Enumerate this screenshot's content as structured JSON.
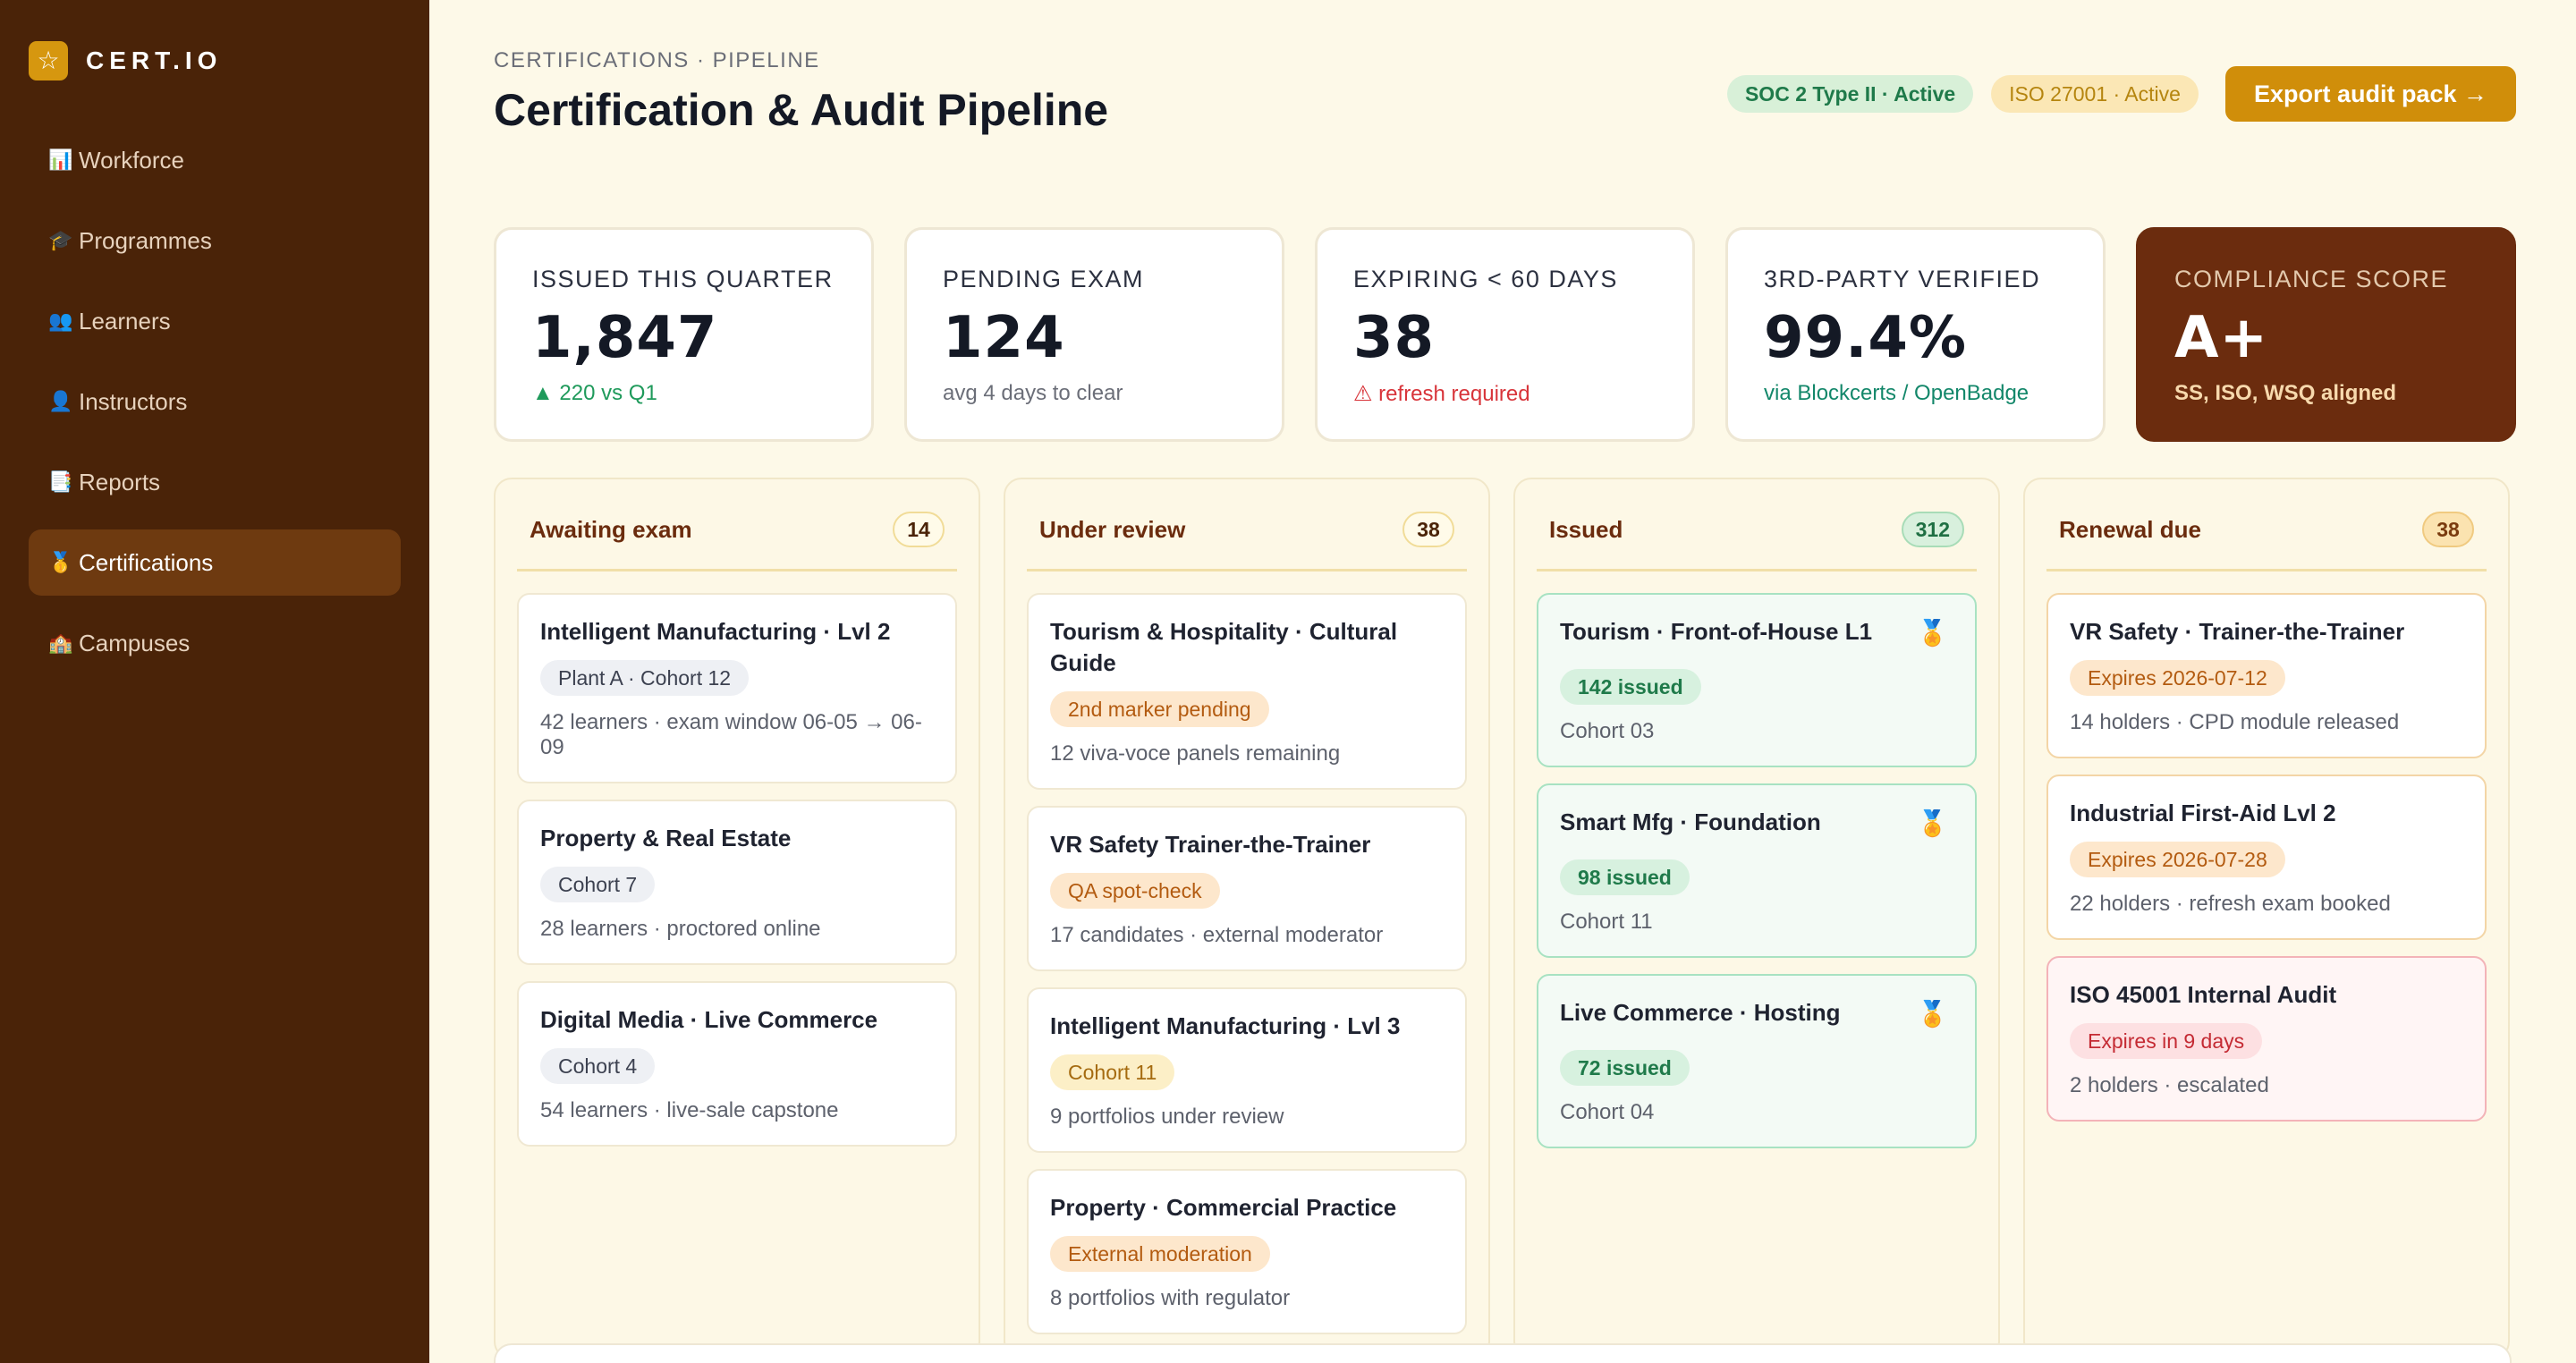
{
  "brand": {
    "logo_icon": "☆",
    "name": "CERT.IO"
  },
  "sidebar": {
    "items": [
      {
        "icon": "📊",
        "label": "Workforce",
        "active": false
      },
      {
        "icon": "🎓",
        "label": "Programmes",
        "active": false
      },
      {
        "icon": "👥",
        "label": "Learners",
        "active": false
      },
      {
        "icon": "👤",
        "label": "Instructors",
        "active": false
      },
      {
        "icon": "📑",
        "label": "Reports",
        "active": false
      },
      {
        "icon": "🥇",
        "label": "Certifications",
        "active": true
      },
      {
        "icon": "🏫",
        "label": "Campuses",
        "active": false
      }
    ]
  },
  "header": {
    "breadcrumb": "CERTIFICATIONS · PIPELINE",
    "title": "Certification & Audit Pipeline",
    "badges": [
      "SOC 2 Type II · Active",
      "ISO 27001 · Active"
    ],
    "export_label": "Export audit pack →"
  },
  "kpis": [
    {
      "label": "ISSUED THIS QUARTER",
      "value": "1,847",
      "sub": "▲ 220 vs Q1"
    },
    {
      "label": "PENDING EXAM",
      "value": "124",
      "sub": "avg 4 days to clear"
    },
    {
      "label": "EXPIRING < 60 DAYS",
      "value": "38",
      "sub": "⚠ refresh required"
    },
    {
      "label": "3RD-PARTY VERIFIED",
      "value": "99.4%",
      "sub": "via Blockcerts / OpenBadge"
    },
    {
      "label": "COMPLIANCE SCORE",
      "value": "A+",
      "sub": "SS, ISO, WSQ aligned"
    }
  ],
  "columns": [
    {
      "title": "Awaiting exam",
      "count": "14",
      "cards": [
        {
          "title": "Intelligent Manufacturing · Lvl 2",
          "tag": "Plant A · Cohort 12",
          "meta": "42 learners · exam window 06-05 → 06-09"
        },
        {
          "title": "Property & Real Estate",
          "tag": "Cohort 7",
          "meta": "28 learners · proctored online"
        },
        {
          "title": "Digital Media · Live Commerce",
          "tag": "Cohort 4",
          "meta": "54 learners · live-sale capstone"
        }
      ]
    },
    {
      "title": "Under review",
      "count": "38",
      "cards": [
        {
          "title": "Tourism & Hospitality · Cultural Guide",
          "tag": "2nd marker pending",
          "meta": "12 viva-voce panels remaining"
        },
        {
          "title": "VR Safety Trainer-the-Trainer",
          "tag": "QA spot-check",
          "meta": "17 candidates · external moderator"
        },
        {
          "title": "Intelligent Manufacturing · Lvl 3",
          "tag": "Cohort 11",
          "meta": "9 portfolios under review"
        },
        {
          "title": "Property · Commercial Practice",
          "tag": "External moderation",
          "meta": "8 portfolios with regulator"
        }
      ]
    },
    {
      "title": "Issued",
      "count": "312",
      "cards": [
        {
          "title": "Tourism · Front-of-House L1",
          "tag": "142 issued",
          "meta": "Cohort 03",
          "icon": "🏅"
        },
        {
          "title": "Smart Mfg · Foundation",
          "tag": "98 issued",
          "meta": "Cohort 11",
          "icon": "🏅"
        },
        {
          "title": "Live Commerce · Hosting",
          "tag": "72 issued",
          "meta": "Cohort 04",
          "icon": "🏅"
        }
      ]
    },
    {
      "title": "Renewal due",
      "count": "38",
      "cards": [
        {
          "title": "VR Safety · Trainer-the-Trainer",
          "tag": "Expires 2026-07-12",
          "meta": "14 holders · CPD module released"
        },
        {
          "title": "Industrial First-Aid Lvl 2",
          "tag": "Expires 2026-07-28",
          "meta": "22 holders · refresh exam booked"
        },
        {
          "title": "ISO 45001 Internal Audit",
          "tag": "Expires in 9 days",
          "meta": "2 holders · escalated"
        }
      ]
    }
  ],
  "colors": {
    "sidebar_bg": "#4a2308",
    "page_bg": "#fdf9e8",
    "accent": "#d08e0a",
    "score_card_bg": "#6b2c0e",
    "success": "#1f9a5b",
    "danger": "#d8343a"
  }
}
